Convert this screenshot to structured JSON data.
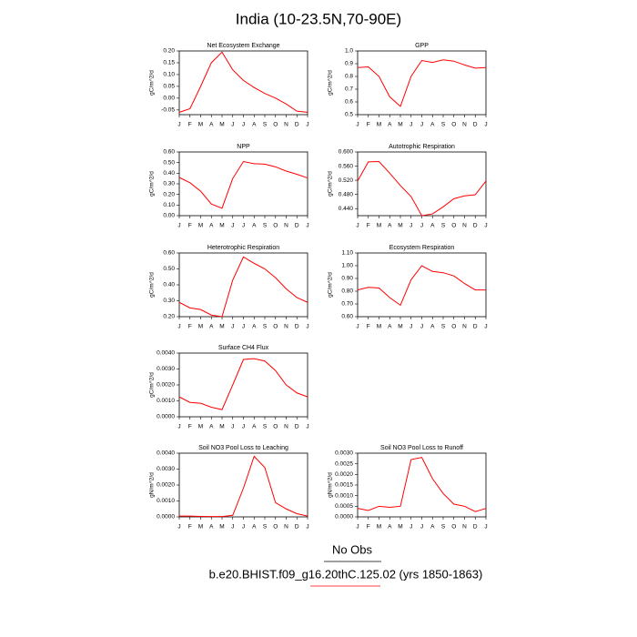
{
  "title": "India (10-23.5N,70-90E)",
  "legend": {
    "obs_label": "No Obs",
    "case_label": "b.e20.BHIST.f09_g16.20thC.125.02 (yrs 1850-1863)",
    "case_color": "#ff0000"
  },
  "chart_data": [
    {
      "type": "line",
      "title": "Net Ecosystem Exchange",
      "y_label": "gC/m^2/d",
      "categories": [
        "J",
        "F",
        "M",
        "A",
        "M",
        "J",
        "J",
        "A",
        "S",
        "O",
        "N",
        "D",
        "J"
      ],
      "series": [
        {
          "color": "#ff0000",
          "values": [
            -0.06,
            -0.045,
            0.05,
            0.15,
            0.195,
            0.12,
            0.075,
            0.045,
            0.02,
            0,
            -0.025,
            -0.055,
            -0.06
          ]
        }
      ],
      "ylim": [
        -0.07,
        0.2
      ],
      "yticks": [
        {
          "value": -0.05,
          "label": "-0.05"
        },
        {
          "value": 0,
          "label": "0.00"
        },
        {
          "value": 0.05,
          "label": "0.05"
        },
        {
          "value": 0.1,
          "label": "0.10"
        },
        {
          "value": 0.15,
          "label": "0.15"
        },
        {
          "value": 0.2,
          "label": "0.20"
        }
      ]
    },
    {
      "type": "line",
      "title": "GPP",
      "y_label": "gC/m^2/d",
      "categories": [
        "J",
        "F",
        "M",
        "A",
        "M",
        "J",
        "J",
        "A",
        "S",
        "O",
        "N",
        "D",
        "J"
      ],
      "series": [
        {
          "color": "#ff0000",
          "values": [
            0.87,
            0.875,
            0.8,
            0.64,
            0.565,
            0.8,
            0.925,
            0.91,
            0.93,
            0.92,
            0.89,
            0.865,
            0.87
          ]
        }
      ],
      "ylim": [
        0.5,
        1.0
      ],
      "yticks": [
        0.5,
        0.6,
        0.7,
        0.8,
        0.9,
        {
          "value": 1.0,
          "label": "1.0"
        }
      ]
    },
    {
      "type": "line",
      "title": "NPP",
      "y_label": "gC/m^2/d",
      "categories": [
        "J",
        "F",
        "M",
        "A",
        "M",
        "J",
        "J",
        "A",
        "S",
        "O",
        "N",
        "D",
        "J"
      ],
      "series": [
        {
          "color": "#ff0000",
          "values": [
            0.36,
            0.31,
            0.23,
            0.11,
            0.07,
            0.35,
            0.51,
            0.49,
            0.485,
            0.46,
            0.42,
            0.39,
            0.355
          ]
        }
      ],
      "ylim": [
        0,
        0.6
      ],
      "yticks": [
        {
          "value": 0,
          "label": "0.00"
        },
        {
          "value": 0.1,
          "label": "0.10"
        },
        {
          "value": 0.2,
          "label": "0.20"
        },
        {
          "value": 0.3,
          "label": "0.30"
        },
        {
          "value": 0.4,
          "label": "0.40"
        },
        {
          "value": 0.5,
          "label": "0.50"
        },
        {
          "value": 0.6,
          "label": "0.60"
        }
      ]
    },
    {
      "type": "line",
      "title": "Autotrophic Respiration",
      "y_label": "gC/m^2/d",
      "categories": [
        "J",
        "F",
        "M",
        "A",
        "M",
        "J",
        "J",
        "A",
        "S",
        "O",
        "N",
        "D",
        "J"
      ],
      "series": [
        {
          "color": "#ff0000",
          "values": [
            0.518,
            0.572,
            0.573,
            0.54,
            0.505,
            0.474,
            0.42,
            0.425,
            0.445,
            0.468,
            0.476,
            0.479,
            0.518
          ]
        }
      ],
      "ylim": [
        0.42,
        0.6
      ],
      "yticks": [
        {
          "value": 0.44,
          "label": "0.440"
        },
        {
          "value": 0.48,
          "label": "0.480"
        },
        {
          "value": 0.52,
          "label": "0.520"
        },
        {
          "value": 0.56,
          "label": "0.560"
        },
        {
          "value": 0.6,
          "label": "0.600"
        }
      ]
    },
    {
      "type": "line",
      "title": "Heterotrophic Respiration",
      "y_label": "gC/m^2/d",
      "categories": [
        "J",
        "F",
        "M",
        "A",
        "M",
        "J",
        "J",
        "A",
        "S",
        "O",
        "N",
        "D",
        "J"
      ],
      "series": [
        {
          "color": "#ff0000",
          "values": [
            0.29,
            0.255,
            0.245,
            0.21,
            0.2,
            0.43,
            0.575,
            0.535,
            0.5,
            0.445,
            0.375,
            0.32,
            0.29
          ]
        }
      ],
      "ylim": [
        0.2,
        0.6
      ],
      "yticks": [
        {
          "value": 0.2,
          "label": "0.20"
        },
        {
          "value": 0.3,
          "label": "0.30"
        },
        {
          "value": 0.4,
          "label": "0.40"
        },
        {
          "value": 0.5,
          "label": "0.50"
        },
        {
          "value": 0.6,
          "label": "0.60"
        }
      ]
    },
    {
      "type": "line",
      "title": "Ecosystem Respiration",
      "y_label": "gC/m^2/d",
      "categories": [
        "J",
        "F",
        "M",
        "A",
        "M",
        "J",
        "J",
        "A",
        "S",
        "O",
        "N",
        "D",
        "J"
      ],
      "series": [
        {
          "color": "#ff0000",
          "values": [
            0.81,
            0.83,
            0.825,
            0.75,
            0.69,
            0.89,
            1.0,
            0.955,
            0.945,
            0.92,
            0.86,
            0.81,
            0.81
          ]
        }
      ],
      "ylim": [
        0.6,
        1.1
      ],
      "yticks": [
        {
          "value": 0.6,
          "label": "0.60"
        },
        {
          "value": 0.7,
          "label": "0.70"
        },
        {
          "value": 0.8,
          "label": "0.80"
        },
        {
          "value": 0.9,
          "label": "0.90"
        },
        {
          "value": 1.0,
          "label": "1.00"
        },
        {
          "value": 1.1,
          "label": "1.10"
        }
      ]
    },
    {
      "type": "line",
      "title": "Surface CH4 Flux",
      "y_label": "gC/m^2/d",
      "categories": [
        "J",
        "F",
        "M",
        "A",
        "M",
        "J",
        "J",
        "A",
        "S",
        "O",
        "N",
        "D",
        "J"
      ],
      "series": [
        {
          "color": "#ff0000",
          "values": [
            0.00125,
            0.0009,
            0.00085,
            0.0006,
            0.00045,
            0.002,
            0.0036,
            0.00365,
            0.0035,
            0.0029,
            0.002,
            0.0015,
            0.00125
          ]
        }
      ],
      "ylim": [
        0,
        0.004
      ],
      "yticks": [
        {
          "value": 0,
          "label": "0.0000"
        },
        {
          "value": 0.001,
          "label": "0.0010"
        },
        {
          "value": 0.002,
          "label": "0.0020"
        },
        {
          "value": 0.003,
          "label": "0.0030"
        },
        {
          "value": 0.004,
          "label": "0.0040"
        }
      ]
    },
    {
      "type": "line",
      "title": "Soil NO3 Pool Loss to Leaching",
      "y_label": "gN/m^2/d",
      "categories": [
        "J",
        "F",
        "M",
        "A",
        "M",
        "J",
        "J",
        "A",
        "S",
        "O",
        "N",
        "D",
        "J"
      ],
      "series": [
        {
          "color": "#ff0000",
          "values": [
            5e-05,
            5e-05,
            3e-05,
            2e-05,
            2e-05,
            0.0001,
            0.0018,
            0.0038,
            0.0031,
            0.0009,
            0.0005,
            0.0002,
            5e-05
          ]
        }
      ],
      "ylim": [
        0,
        0.004
      ],
      "yticks": [
        {
          "value": 0,
          "label": "0.0000"
        },
        {
          "value": 0.001,
          "label": "0.0010"
        },
        {
          "value": 0.002,
          "label": "0.0020"
        },
        {
          "value": 0.003,
          "label": "0.0030"
        },
        {
          "value": 0.004,
          "label": "0.0040"
        }
      ]
    },
    {
      "type": "line",
      "title": "Soil NO3 Pool Loss to Runoff",
      "y_label": "gN/m^2/d",
      "categories": [
        "J",
        "F",
        "M",
        "A",
        "M",
        "J",
        "J",
        "A",
        "S",
        "O",
        "N",
        "D",
        "J"
      ],
      "series": [
        {
          "color": "#ff0000",
          "values": [
            0.0004,
            0.0003,
            0.0005,
            0.00045,
            0.0005,
            0.0027,
            0.0028,
            0.0018,
            0.0011,
            0.0006,
            0.0005,
            0.00025,
            0.0004
          ]
        }
      ],
      "ylim": [
        0,
        0.003
      ],
      "yticks": [
        {
          "value": 0,
          "label": "0.0000"
        },
        {
          "value": 0.0005,
          "label": "0.0005"
        },
        {
          "value": 0.001,
          "label": "0.0010"
        },
        {
          "value": 0.0015,
          "label": "0.0015"
        },
        {
          "value": 0.002,
          "label": "0.0020"
        },
        {
          "value": 0.0025,
          "label": "0.0025"
        },
        {
          "value": 0.003,
          "label": "0.0030"
        }
      ]
    }
  ]
}
